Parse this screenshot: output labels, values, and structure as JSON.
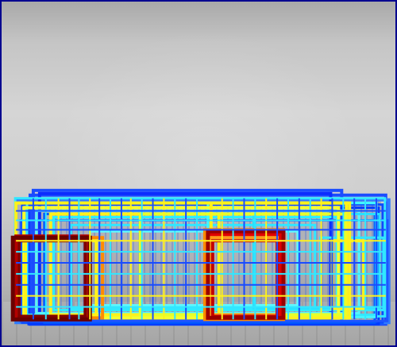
{
  "image": {
    "kind": "photo with colored detection boxes",
    "palette": {
      "frame": "#00008f",
      "blue": "#1a4cff",
      "cyan": "#31e7ff",
      "yellow": "#fff21a",
      "orange": "#ff8a00",
      "red": "#b30000",
      "dark_red": "#6a0000"
    }
  }
}
